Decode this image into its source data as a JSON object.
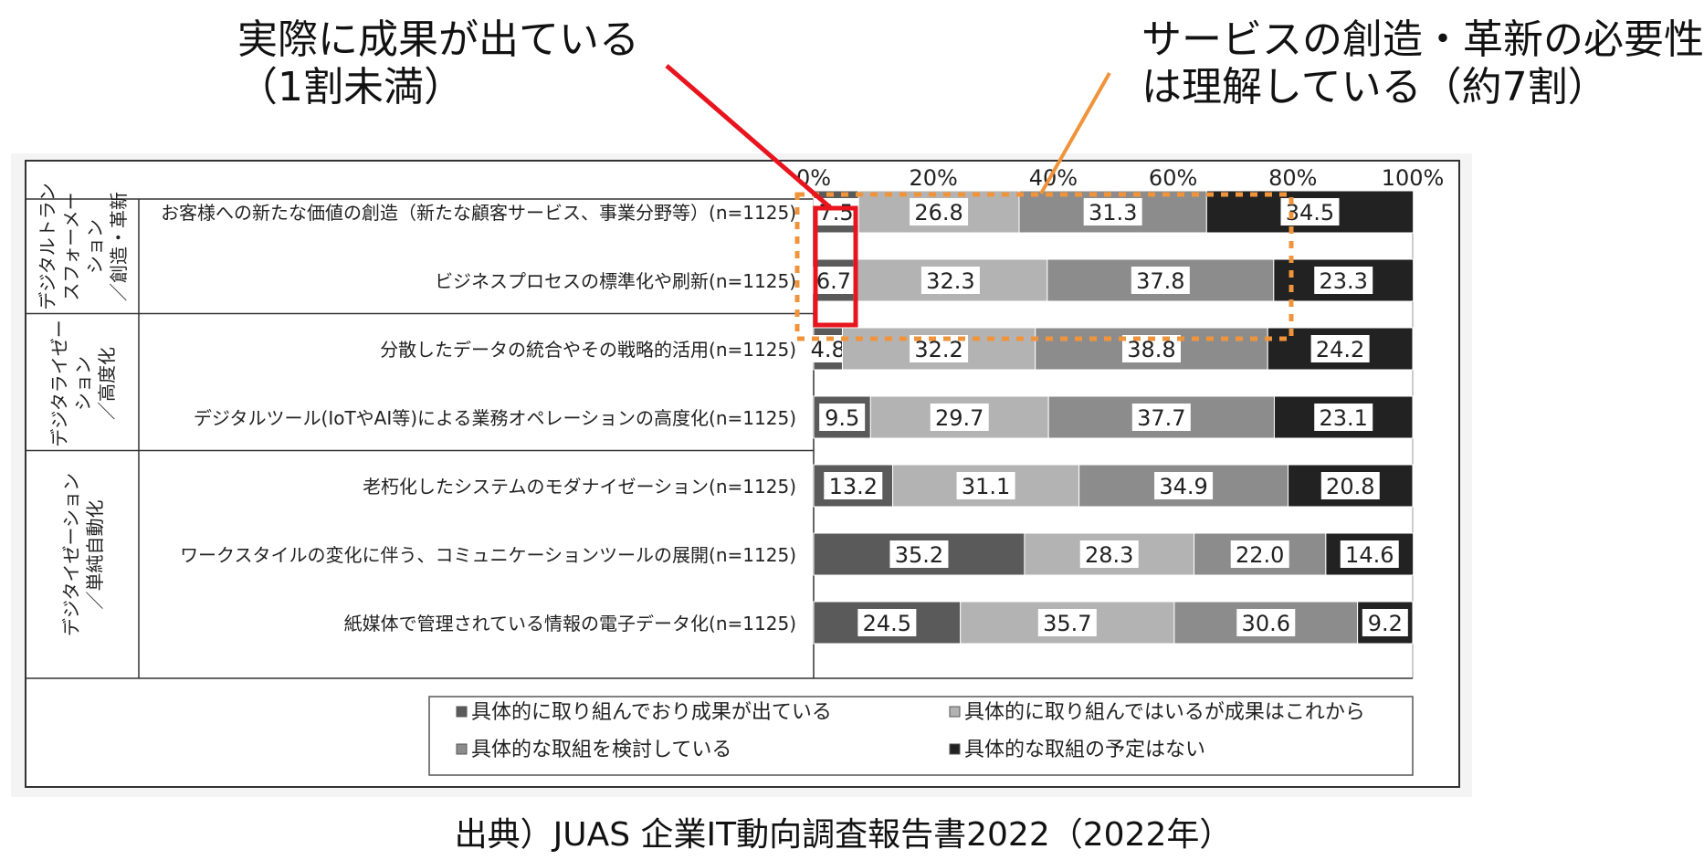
{
  "callouts": {
    "left": "実際に成果が出ている\n（1割未満）",
    "right": "サービスの創造・革新の必要性\nは理解している（約7割）"
  },
  "source": "出典）JUAS 企業IT動向調査報告書2022（2022年）",
  "chart_data": {
    "type": "bar",
    "orientation": "horizontal",
    "stacked": "100%",
    "x_ticks": [
      "0%",
      "20%",
      "40%",
      "60%",
      "80%",
      "100%"
    ],
    "xlim": [
      0,
      100
    ],
    "groups": [
      {
        "label": "デジタルトランスフォーメーション／創造・革新",
        "label_lines": [
          "デジタルトラン",
          "スフォーメー",
          "ション",
          "／創造・革新"
        ],
        "rows": [
          0,
          1
        ]
      },
      {
        "label": "デジタライゼーション／高度化",
        "label_lines": [
          "デジタライゼー",
          "ション",
          "／高度化"
        ],
        "rows": [
          2,
          3
        ]
      },
      {
        "label": "デジタイゼーション／単純自動化",
        "label_lines": [
          "デジタイゼーション",
          "／単純自動化"
        ],
        "rows": [
          4,
          5,
          6
        ]
      }
    ],
    "categories": [
      "お客様への新たな価値の創造（新たな顧客サービス、事業分野等）(n=1125)",
      "ビジネスプロセスの標準化や刷新(n=1125)",
      "分散したデータの統合やその戦略的活用(n=1125)",
      "デジタルツール(IoTやAI等)による業務オペレーションの高度化(n=1125)",
      "老朽化したシステムのモダナイゼーション(n=1125)",
      "ワークスタイルの変化に伴う、コミュニケーションツールの展開(n=1125)",
      "紙媒体で管理されている情報の電子データ化(n=1125)"
    ],
    "series": [
      {
        "name": "具体的に取り組んでおり成果が出ている",
        "color": "#5a5a5a",
        "values": [
          7.5,
          6.7,
          4.8,
          9.5,
          13.2,
          35.2,
          24.5
        ]
      },
      {
        "name": "具体的に取り組んではいるが成果はこれから",
        "color": "#b3b3b3",
        "values": [
          26.8,
          32.3,
          32.2,
          29.7,
          31.1,
          28.3,
          35.7
        ]
      },
      {
        "name": "具体的な取組を検討している",
        "color": "#8c8c8c",
        "values": [
          31.3,
          37.8,
          38.8,
          37.7,
          34.9,
          22.0,
          30.6
        ]
      },
      {
        "name": "具体的な取組の予定はない",
        "color": "#222222",
        "values": [
          34.5,
          23.3,
          24.2,
          23.1,
          20.8,
          14.6,
          9.2
        ]
      }
    ],
    "value_labels": [
      [
        "7.5",
        "26.8",
        "31.3",
        "34.5"
      ],
      [
        "6.7",
        "32.3",
        "37.8",
        "23.3"
      ],
      [
        "4.8",
        "32.2",
        "38.8",
        "24.2"
      ],
      [
        "9.5",
        "29.7",
        "37.7",
        "23.1"
      ],
      [
        "13.2",
        "31.1",
        "34.9",
        "20.8"
      ],
      [
        "35.2",
        "28.3",
        "22.0",
        "14.6"
      ],
      [
        "24.5",
        "35.7",
        "30.6",
        "9.2"
      ]
    ],
    "highlight_colors": {
      "red_box": "#e8141e",
      "orange_box": "#f0943c"
    }
  }
}
